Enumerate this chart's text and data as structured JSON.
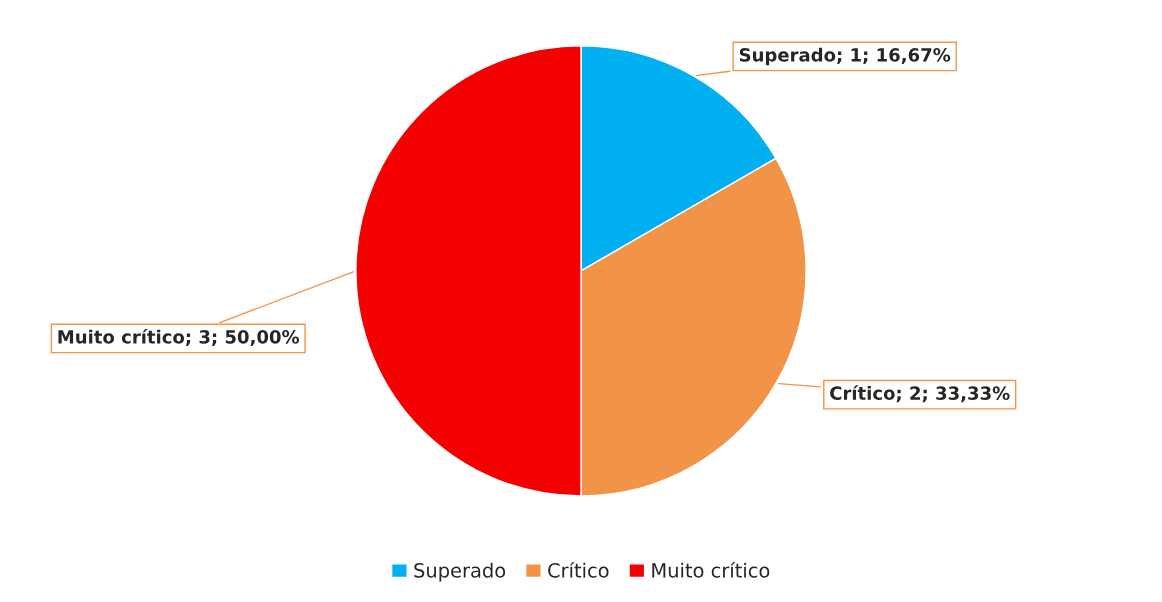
{
  "chart_data": {
    "type": "pie",
    "categories": [
      "Superado",
      "Crítico",
      "Muito crítico"
    ],
    "values": [
      1,
      2,
      3
    ],
    "colors": [
      "#00b0f0",
      "#f29447",
      "#f50000"
    ],
    "value_labels": [
      "Superado; 1; 16,67%",
      "Crítico; 2; 33,33%",
      "Muito crítico; 3; 50,00%"
    ],
    "legend": "bottom"
  }
}
